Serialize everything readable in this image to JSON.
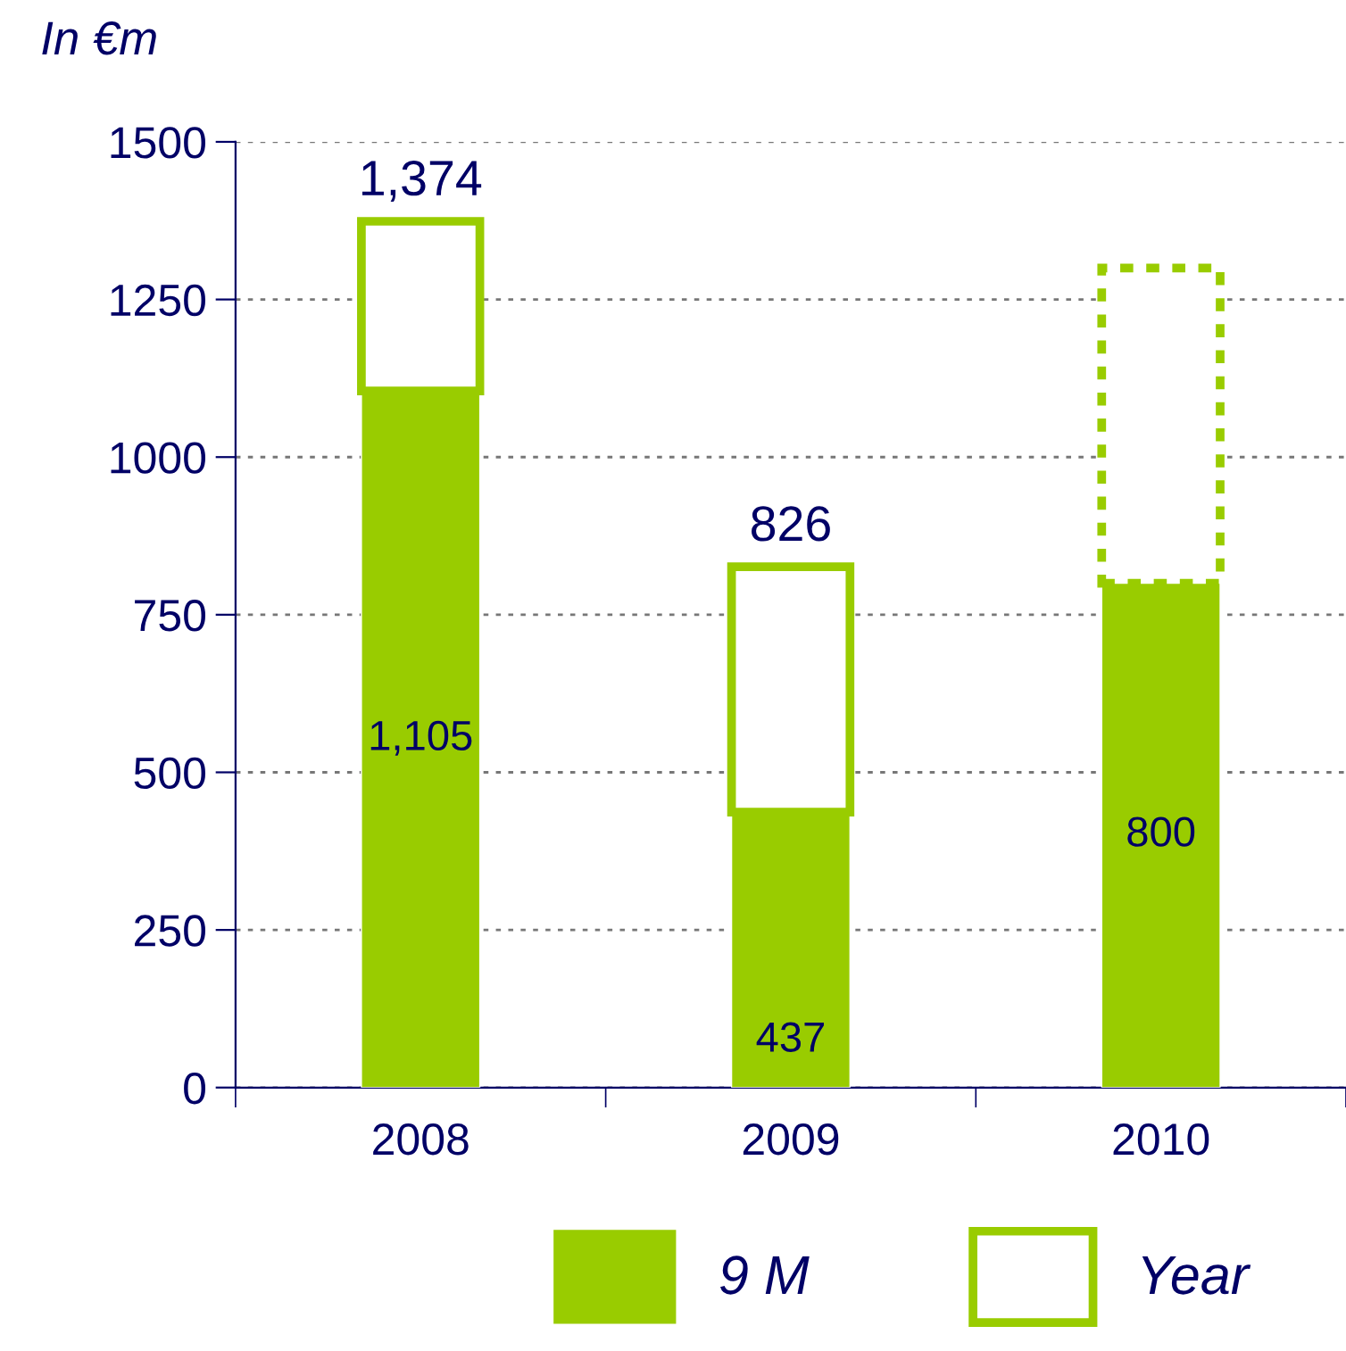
{
  "chart_data": {
    "type": "bar",
    "stacked": true,
    "ylabel": "In €m",
    "categories": [
      "2008",
      "2009",
      "2010"
    ],
    "series": [
      {
        "name": "9 M",
        "color": "#99cc00",
        "values": [
          1105,
          437,
          800
        ],
        "value_labels": [
          "1,105",
          "437",
          "800"
        ]
      },
      {
        "name": "Year",
        "color": "#99cc00",
        "values": [
          269,
          389,
          null
        ],
        "line_style": "solid"
      },
      {
        "color": "#99cc00",
        "values": [
          null,
          null,
          500
        ],
        "line_style": "dashed"
      }
    ],
    "totals": [
      "1,374",
      "826",
      null
    ],
    "ylim": [
      0,
      1500
    ],
    "yticks": [
      0,
      250,
      500,
      750,
      1000,
      1250,
      1500
    ],
    "grid": "y",
    "legend": "bottom"
  }
}
